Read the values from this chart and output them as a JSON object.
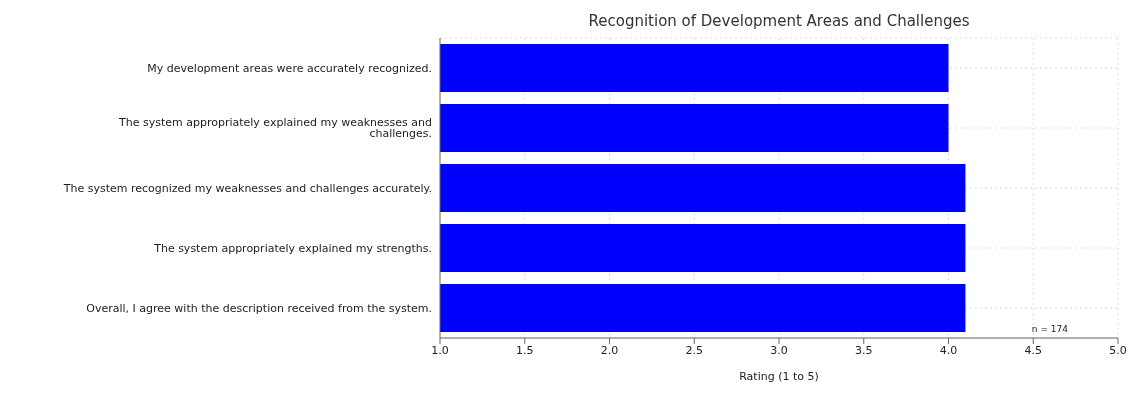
{
  "chart_data": {
    "type": "bar",
    "orientation": "horizontal",
    "title": "Recognition of Development Areas and Challenges",
    "xlabel": "Rating (1 to 5)",
    "categories": [
      "My development areas were accurately recognized.",
      "The system appropriately explained my weaknesses and challenges.",
      "The system recognized my weaknesses and challenges accurately.",
      "The system appropriately explained my strengths.",
      "Overall, I agree with the description received from the system."
    ],
    "values": [
      4.0,
      4.0,
      4.1,
      4.1,
      4.1
    ],
    "color": "#0000ff",
    "xlim": [
      1.0,
      5.0
    ],
    "xticks": [
      {
        "value": 1,
        "label": "1.0"
      },
      {
        "value": 1.5,
        "label": "1.5"
      },
      {
        "value": 2,
        "label": "2.0"
      },
      {
        "value": 2.5,
        "label": "2.5"
      },
      {
        "value": 3,
        "label": "3.0"
      },
      {
        "value": 3.5,
        "label": "3.5"
      },
      {
        "value": 4,
        "label": "4.0"
      },
      {
        "value": 4.5,
        "label": "4.5"
      },
      {
        "value": 5,
        "label": "5.0"
      }
    ],
    "grid": true,
    "annotations": [
      "n = 174"
    ]
  }
}
